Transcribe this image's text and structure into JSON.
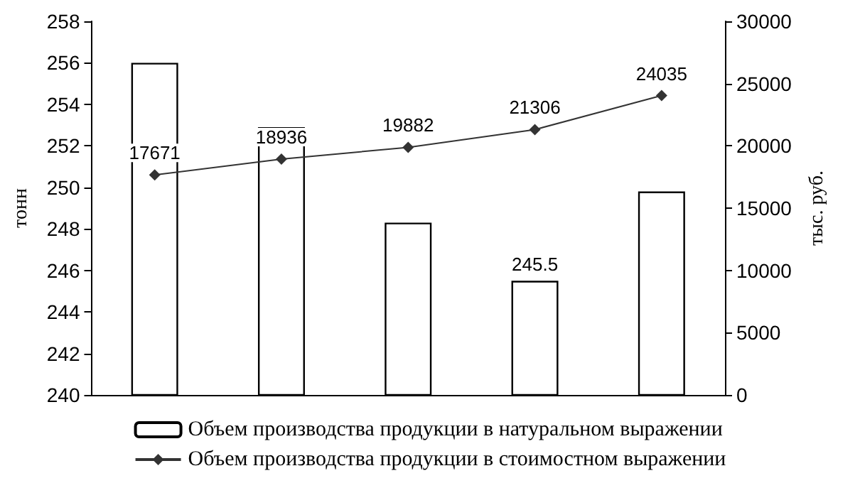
{
  "chart_data": {
    "type": "bar",
    "categories": [
      null,
      null,
      null,
      null,
      null
    ],
    "ylabel": "тонн",
    "y2label": "тыс. руб.",
    "ylim": [
      240,
      258
    ],
    "yticks": [
      240,
      242,
      244,
      246,
      248,
      250,
      252,
      254,
      256,
      258
    ],
    "y2lim": [
      0,
      30000
    ],
    "y2ticks": [
      0,
      5000,
      10000,
      15000,
      20000,
      25000,
      30000
    ],
    "series": [
      {
        "name": "Объем производства продукции в натуральном выражении",
        "color": "#ffffff",
        "values": [
          256,
          252.9,
          248.3,
          245.5,
          249.8
        ],
        "value_labels": [
          null,
          null,
          null,
          "245.5",
          null
        ]
      },
      {
        "name": "Объем производства продукции в стоимостном выражении",
        "type": "line",
        "axis": "y2",
        "color": "#333333",
        "marker": "diamond",
        "values": [
          17671,
          18936,
          19882,
          21306,
          24035
        ],
        "value_labels": [
          "17671",
          "18936",
          "19882",
          "21306",
          "24035"
        ]
      }
    ],
    "grid": false,
    "legend": "bottom"
  }
}
